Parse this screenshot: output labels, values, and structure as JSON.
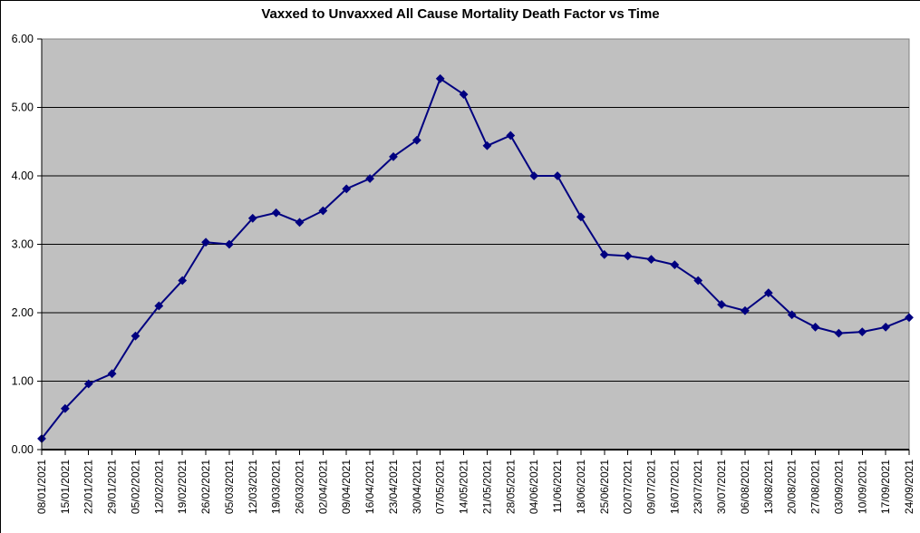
{
  "chart_data": {
    "type": "line",
    "title": "Vaxxed to Unvaxxed All Cause Mortality Death Factor vs Time",
    "categories": [
      "08/01/2021",
      "15/01/2021",
      "22/01/2021",
      "29/01/2021",
      "05/02/2021",
      "12/02/2021",
      "19/02/2021",
      "26/02/2021",
      "05/03/2021",
      "12/03/2021",
      "19/03/2021",
      "26/03/2021",
      "02/04/2021",
      "09/04/2021",
      "16/04/2021",
      "23/04/2021",
      "30/04/2021",
      "07/05/2021",
      "14/05/2021",
      "21/05/2021",
      "28/05/2021",
      "04/06/2021",
      "11/06/2021",
      "18/06/2021",
      "25/06/2021",
      "02/07/2021",
      "09/07/2021",
      "16/07/2021",
      "23/07/2021",
      "30/07/2021",
      "06/08/2021",
      "13/08/2021",
      "20/08/2021",
      "27/08/2021",
      "03/09/2021",
      "10/09/2021",
      "17/09/2021",
      "24/09/2021"
    ],
    "values": [
      0.16,
      0.6,
      0.96,
      1.11,
      1.66,
      2.1,
      2.47,
      3.03,
      3.0,
      3.38,
      3.46,
      3.32,
      3.49,
      3.81,
      3.96,
      4.28,
      4.52,
      5.42,
      5.19,
      4.44,
      4.59,
      4.0,
      4.0,
      3.4,
      2.85,
      2.83,
      2.78,
      2.7,
      2.47,
      2.12,
      2.03,
      2.29,
      1.97,
      1.79,
      1.7,
      1.72,
      1.79,
      1.93
    ],
    "xlabel": "",
    "ylabel": "",
    "ylim": [
      0,
      6
    ],
    "ytick_step": 1,
    "ytick_labels": [
      "0.00",
      "1.00",
      "2.00",
      "3.00",
      "4.00",
      "5.00",
      "6.00"
    ],
    "grid": true,
    "legend_position": "none",
    "marker": "diamond",
    "x_label_rotation_deg": 90,
    "colors": {
      "line": "#000080",
      "marker": "#000080",
      "plot_bg": "#C0C0C0",
      "plot_border": "#808080",
      "gridline": "#000000",
      "axis": "#000000",
      "text": "#000000",
      "page_bg": "#FFFFFF"
    }
  }
}
